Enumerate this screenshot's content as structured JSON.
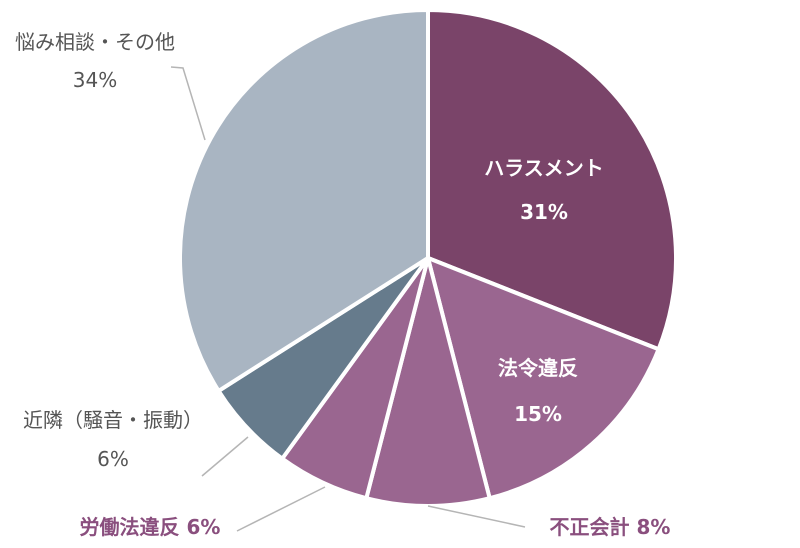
{
  "chart_data": {
    "type": "pie",
    "start": "top",
    "direction": "clockwise",
    "slices": [
      {
        "label": "ハラスメント",
        "value": 31,
        "display": "31%",
        "color": "#7a4469",
        "label_color": "#ffffff"
      },
      {
        "label": "法令違反",
        "value": 15,
        "display": "15%",
        "color": "#9a6690",
        "label_color": "#ffffff"
      },
      {
        "label": "不正会計",
        "value": 8,
        "display": "8%",
        "color": "#9a6690",
        "label_color": "#8a4f7e"
      },
      {
        "label": "労働法違反",
        "value": 6,
        "display": "6%",
        "color": "#9a6690",
        "label_color": "#8a4f7e"
      },
      {
        "label": "近隣（騒音・振動）",
        "value": 6,
        "display": "6%",
        "color": "#667b8c",
        "label_color": "#555555"
      },
      {
        "label": "悩み相談・その他",
        "value": 34,
        "display": "34%",
        "color": "#a9b5c2",
        "label_color": "#555555"
      }
    ]
  }
}
